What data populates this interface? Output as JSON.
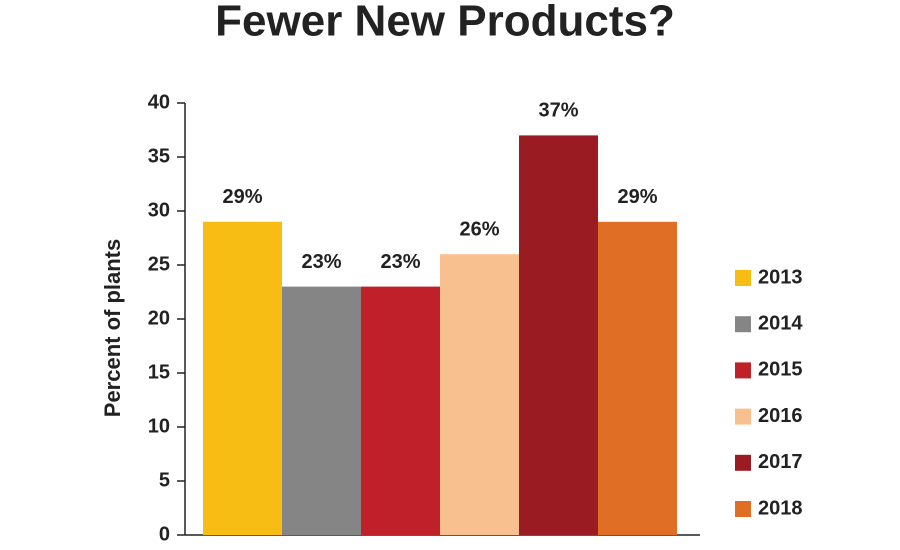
{
  "chart_data": {
    "type": "bar",
    "title": "Fewer New Products?",
    "y_label": "Percent of plants",
    "series": [
      {
        "name": "2013",
        "color": "#f8bd14",
        "values": [
          29
        ],
        "value_labels": [
          "29%"
        ]
      },
      {
        "name": "2014",
        "color": "#858585",
        "values": [
          23
        ],
        "value_labels": [
          "23%"
        ]
      },
      {
        "name": "2015",
        "color": "#c0202a",
        "values": [
          23
        ],
        "value_labels": [
          "23%"
        ]
      },
      {
        "name": "2016",
        "color": "#f9c08f",
        "values": [
          26
        ],
        "value_labels": [
          "26%"
        ]
      },
      {
        "name": "2017",
        "color": "#9a1c22",
        "values": [
          37
        ],
        "value_labels": [
          "37%"
        ]
      },
      {
        "name": "2018",
        "color": "#e06e24",
        "values": [
          29
        ],
        "value_labels": [
          "29%"
        ]
      }
    ],
    "ylim": [
      0,
      40
    ],
    "yticks": [
      0,
      5,
      10,
      15,
      20,
      25,
      30,
      35,
      40
    ],
    "grid": false,
    "legend": "right"
  }
}
